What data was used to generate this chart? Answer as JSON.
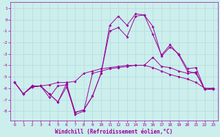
{
  "title": "Windchill (Refroidissement éolien,°C)",
  "bg_color": "#cceeed",
  "grid_color": "#aad8d5",
  "line_color": "#990099",
  "marker": "D",
  "markersize": 1.8,
  "linewidth": 0.7,
  "ylim": [
    -8.8,
    1.5
  ],
  "xlim": [
    -0.5,
    23.5
  ],
  "yticks": [
    1,
    0,
    -1,
    -2,
    -3,
    -4,
    -5,
    -6,
    -7,
    -8
  ],
  "xticks": [
    0,
    1,
    2,
    3,
    4,
    5,
    6,
    7,
    8,
    9,
    10,
    11,
    12,
    13,
    14,
    15,
    16,
    17,
    18,
    19,
    20,
    21,
    22,
    23
  ],
  "series": [
    [
      -5.5,
      -6.5,
      -5.8,
      -5.8,
      -5.7,
      -5.5,
      -5.5,
      -5.4,
      -4.7,
      -4.5,
      -4.3,
      -4.2,
      -4.1,
      -4.0,
      -4.0,
      -4.0,
      -4.2,
      -4.5,
      -4.8,
      -5.0,
      -5.2,
      -5.5,
      -6.0,
      -6.0
    ],
    [
      -5.5,
      -6.5,
      -5.8,
      -5.8,
      -6.8,
      -5.8,
      -5.7,
      -8.3,
      -8.0,
      -4.7,
      -4.5,
      -4.3,
      -4.2,
      -4.1,
      -4.0,
      -4.0,
      -3.3,
      -4.1,
      -4.2,
      -4.5,
      -4.7,
      -4.6,
      -6.1,
      -6.0
    ],
    [
      -5.5,
      -6.5,
      -5.9,
      -5.8,
      -6.5,
      -7.2,
      -5.9,
      -8.1,
      -7.9,
      -6.7,
      -4.7,
      -1.0,
      -0.7,
      -1.5,
      0.3,
      0.4,
      -0.6,
      -3.2,
      -2.4,
      -3.0,
      -4.3,
      -4.2,
      -6.1,
      -6.1
    ],
    [
      -5.5,
      -6.5,
      -5.9,
      -5.8,
      -6.5,
      -7.2,
      -5.6,
      -8.1,
      -7.9,
      -6.7,
      -4.7,
      -0.5,
      0.3,
      -0.5,
      0.5,
      0.4,
      -1.3,
      -3.1,
      -2.2,
      -3.1,
      -4.5,
      -4.7,
      -6.1,
      -6.1
    ]
  ],
  "tick_fontsize": 4.5,
  "label_fontsize": 5.5
}
